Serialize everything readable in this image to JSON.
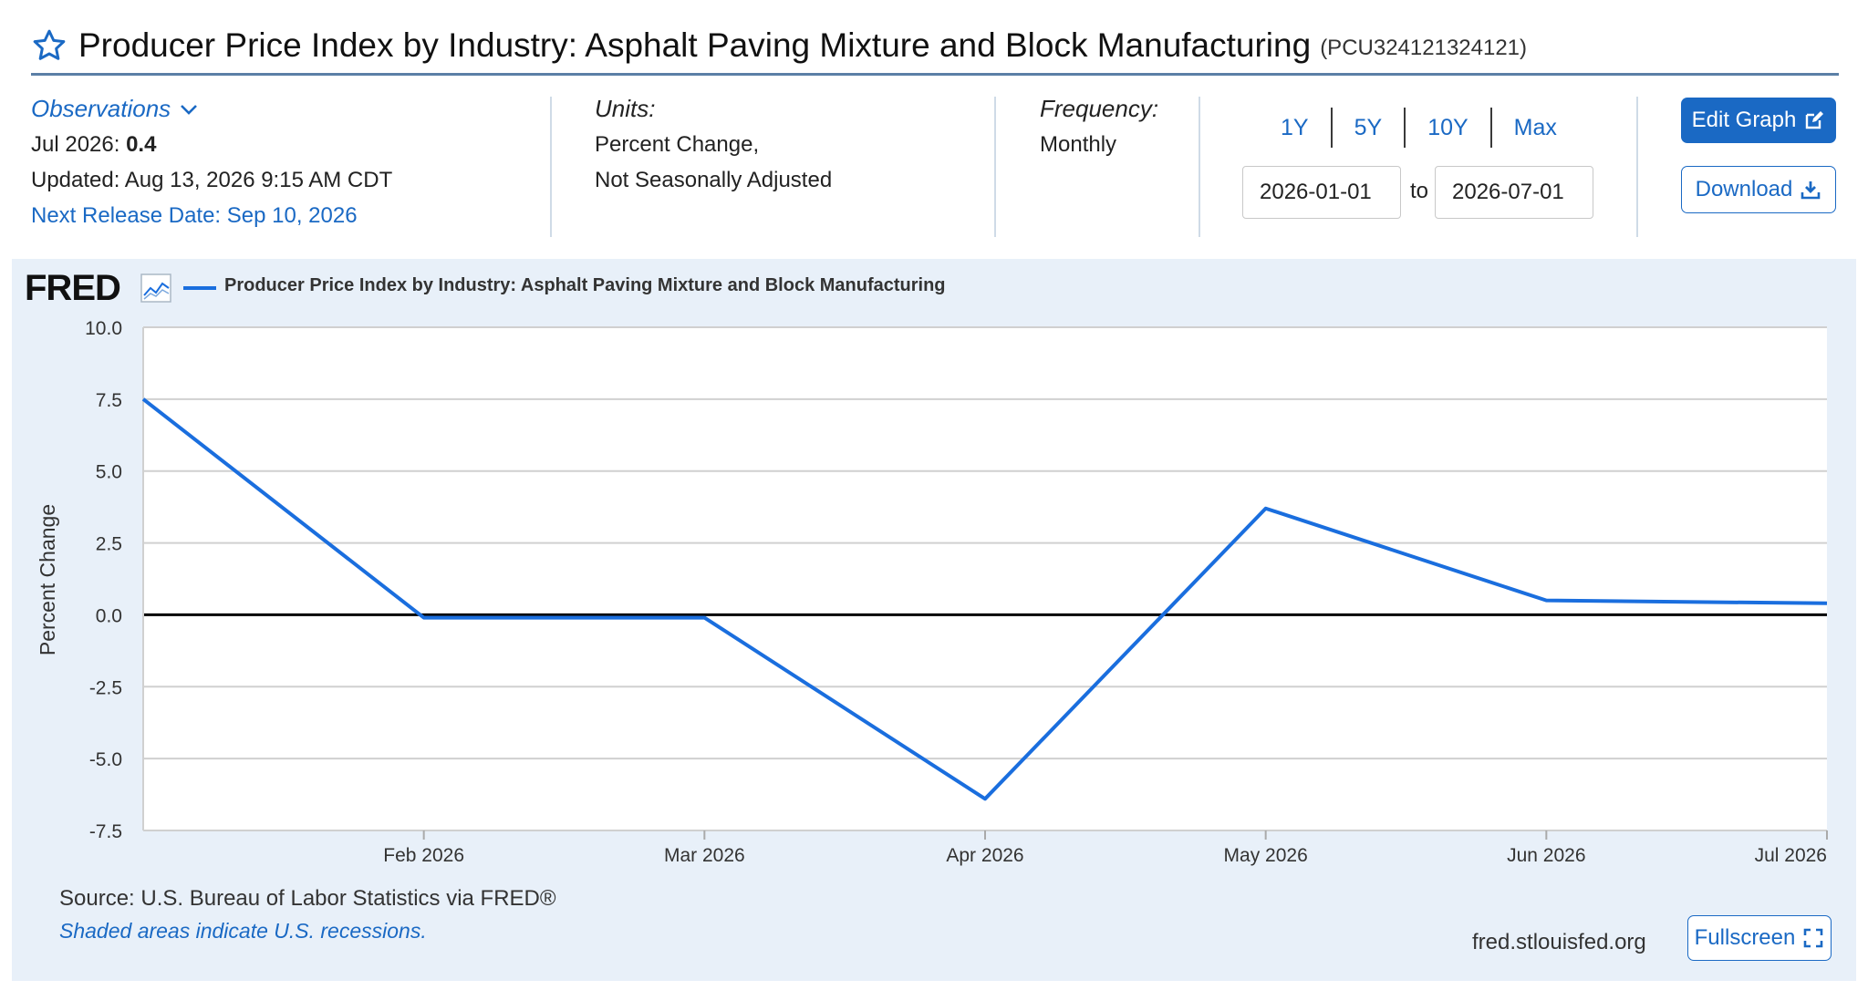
{
  "header": {
    "title": "Producer Price Index by Industry: Asphalt Paving Mixture and Block Manufacturing",
    "series_id": "(PCU324121324121)",
    "star_icon": "star-outline-icon"
  },
  "observations": {
    "link_label": "Observations",
    "latest_label": "Jul 2026:",
    "latest_value": "0.4",
    "updated": "Updated: Aug 13, 2026 9:15 AM CDT",
    "next_release": "Next Release Date: Sep 10, 2026"
  },
  "units": {
    "label": "Units:",
    "line1": "Percent Change,",
    "line2": "Not Seasonally Adjusted"
  },
  "frequency": {
    "label": "Frequency:",
    "value": "Monthly"
  },
  "date_range": {
    "buttons": [
      "1Y",
      "5Y",
      "10Y",
      "Max"
    ],
    "start": "2026-01-01",
    "to_label": "to",
    "end": "2026-07-01"
  },
  "actions": {
    "edit_graph": "Edit Graph",
    "download": "Download",
    "fullscreen": "Fullscreen"
  },
  "chart_panel": {
    "logo": "FRED",
    "legend_label": "Producer Price Index by Industry: Asphalt Paving Mixture and Block Manufacturing",
    "source": "Source: U.S. Bureau of Labor Statistics via FRED®",
    "recession_note": "Shaded areas indicate U.S. recessions.",
    "site": "fred.stlouisfed.org"
  },
  "chart_data": {
    "type": "line",
    "title": "",
    "xlabel": "",
    "ylabel": "Percent Change",
    "x": [
      "2026-01",
      "2026-02",
      "2026-03",
      "2026-04",
      "2026-05",
      "2026-06",
      "2026-07"
    ],
    "x_tick_labels": [
      "Feb 2026",
      "Mar 2026",
      "Apr 2026",
      "May 2026",
      "Jun 2026",
      "Jul 2026"
    ],
    "y_ticks": [
      "10.0",
      "7.5",
      "5.0",
      "2.5",
      "0.0",
      "-2.5",
      "-5.0",
      "-7.5"
    ],
    "ylim": [
      -7.5,
      10.0
    ],
    "grid": true,
    "legend": "top-left",
    "series": [
      {
        "name": "Producer Price Index by Industry: Asphalt Paving Mixture and Block Manufacturing",
        "color": "#1a6ede",
        "values": [
          7.5,
          -0.1,
          -0.1,
          -6.4,
          3.7,
          0.5,
          0.4
        ]
      }
    ]
  }
}
